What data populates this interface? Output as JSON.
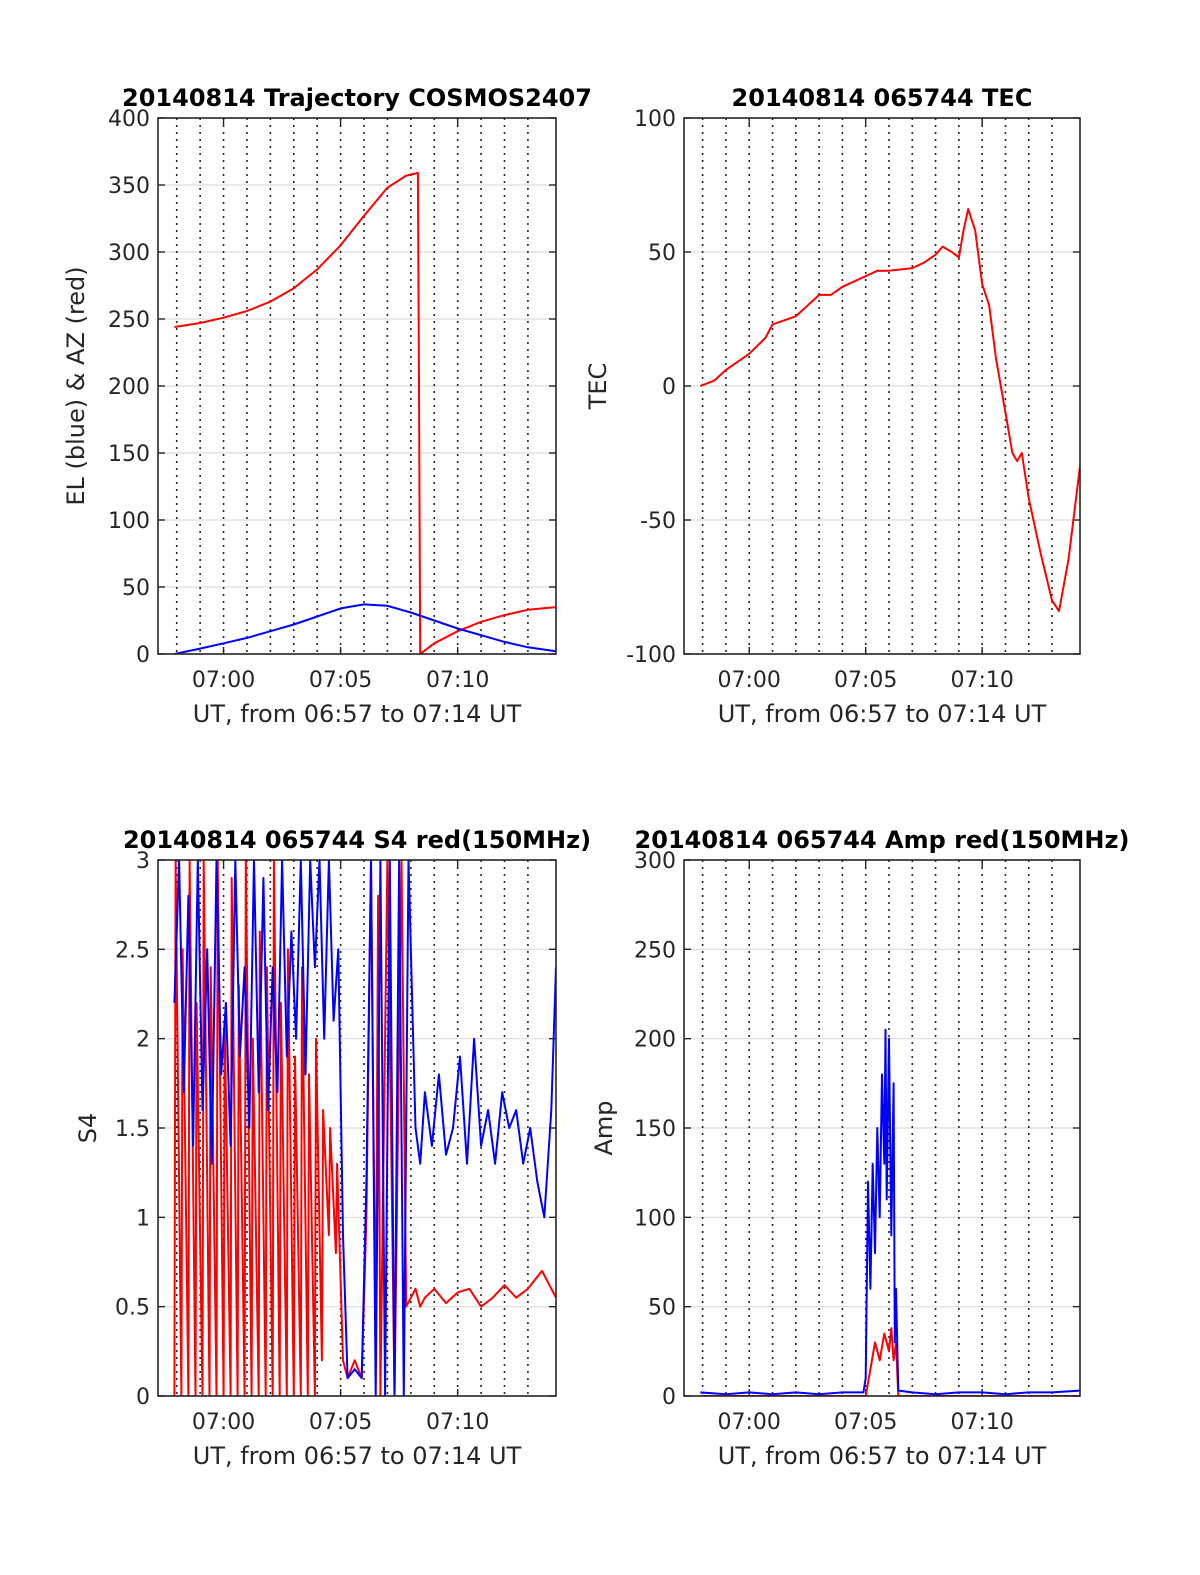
{
  "chart_data": [
    {
      "type": "line",
      "title": "20140814 Trajectory COSMOS2407",
      "xlabel": "UT, from 06:57 to 07:14 UT",
      "ylabel": "EL (blue) & AZ (red)",
      "x_unit": "minutes after 07:00 UT",
      "xlim": [
        -2.8,
        14.2
      ],
      "ylim": [
        0,
        400
      ],
      "yticks": [
        "0",
        "50",
        "100",
        "150",
        "200",
        "250",
        "300",
        "350",
        "400"
      ],
      "xticks": [
        {
          "x": 0,
          "label": "07:00"
        },
        {
          "x": 5,
          "label": "07:05"
        },
        {
          "x": 10,
          "label": "07:10"
        }
      ],
      "grid": true,
      "series": [
        {
          "color": "#ff0000",
          "x": [
            -2.1,
            -1,
            0,
            1,
            2,
            3,
            4,
            5,
            6,
            7,
            7.8,
            8.3,
            8.35,
            8.4,
            9,
            10,
            11,
            12,
            13,
            14.2
          ],
          "y": [
            244,
            247,
            251,
            256,
            263,
            273,
            287,
            305,
            327,
            348,
            357,
            359,
            200,
            0,
            8,
            17,
            24,
            29,
            33,
            35
          ]
        },
        {
          "color": "#0000ff",
          "x": [
            -2.1,
            -1,
            0,
            1,
            2,
            3,
            4,
            5,
            6,
            7,
            8,
            9,
            10,
            11,
            12,
            13,
            14.2
          ],
          "y": [
            0,
            4,
            8,
            12,
            17,
            22,
            28,
            34,
            37,
            36,
            31,
            25,
            19,
            14,
            9,
            5,
            2
          ]
        }
      ]
    },
    {
      "type": "line",
      "title": "20140814 065744 TEC",
      "xlabel": "UT, from 06:57 to 07:14 UT",
      "ylabel": "TEC",
      "x_unit": "minutes after 07:00 UT",
      "xlim": [
        -2.8,
        14.2
      ],
      "ylim": [
        -100,
        100
      ],
      "yticks": [
        "-100",
        "-50",
        "0",
        "50",
        "100"
      ],
      "xticks": [
        {
          "x": 0,
          "label": "07:00"
        },
        {
          "x": 5,
          "label": "07:05"
        },
        {
          "x": 10,
          "label": "07:10"
        }
      ],
      "grid": true,
      "series": [
        {
          "color": "#ff0000",
          "x": [
            -2.1,
            -1.5,
            -1,
            0,
            0.7,
            1,
            2,
            2.5,
            3,
            3.5,
            4,
            5,
            5.5,
            6,
            7,
            7.5,
            8,
            8.3,
            8.7,
            9,
            9.2,
            9.4,
            9.7,
            10,
            10.3,
            10.6,
            11,
            11.3,
            11.5,
            11.7,
            12,
            12.5,
            13,
            13.3,
            13.7,
            14.2
          ],
          "y": [
            0,
            2,
            6,
            12,
            18,
            23,
            26,
            30,
            34,
            34,
            37,
            41,
            43,
            43,
            44,
            46,
            49,
            52,
            50,
            48,
            58,
            66,
            58,
            38,
            30,
            10,
            -10,
            -25,
            -28,
            -25,
            -42,
            -62,
            -80,
            -84,
            -65,
            -30
          ]
        }
      ]
    },
    {
      "type": "line",
      "title": "20140814 065744 S4 red(150MHz)",
      "xlabel": "UT, from 06:57 to 07:14 UT",
      "ylabel": "S4",
      "x_unit": "minutes after 07:00 UT",
      "xlim": [
        -2.8,
        14.2
      ],
      "ylim": [
        0,
        3
      ],
      "yticks": [
        "0",
        "0.5",
        "1",
        "1.5",
        "2",
        "2.5",
        "3"
      ],
      "xticks": [
        {
          "x": 0,
          "label": "07:00"
        },
        {
          "x": 5,
          "label": "07:05"
        },
        {
          "x": 10,
          "label": "07:10"
        }
      ],
      "grid": true,
      "series": [
        {
          "color": "#ff0000",
          "x": [
            -2.1,
            -2.05,
            -1.8,
            -1.75,
            -1.5,
            -1.45,
            -1.2,
            -1.15,
            -0.9,
            -0.85,
            -0.6,
            -0.55,
            -0.3,
            -0.25,
            0,
            0.05,
            0.3,
            0.35,
            0.6,
            0.65,
            0.9,
            0.95,
            1.2,
            1.25,
            1.5,
            1.55,
            1.8,
            1.85,
            2.1,
            2.15,
            2.4,
            2.45,
            2.7,
            2.75,
            3.0,
            3.05,
            3.3,
            3.35,
            3.6,
            3.65,
            3.9,
            3.95,
            4.2,
            4.25,
            4.5,
            4.55,
            4.8,
            4.85,
            5.1,
            5.3,
            5.6,
            5.9,
            6.1,
            6.3,
            6.5,
            6.6,
            6.7,
            7.0,
            7.3,
            7.6,
            7.8,
            8.2,
            8.4,
            8.6,
            9,
            9.5,
            10,
            10.5,
            11,
            11.5,
            12,
            12.5,
            13,
            13.3,
            13.6,
            14.2
          ],
          "y": [
            0,
            3,
            0,
            2.5,
            0,
            3,
            0,
            2.2,
            0,
            3,
            0,
            2.4,
            0,
            3,
            0,
            2.1,
            0,
            2.9,
            0,
            2.3,
            0,
            3,
            0,
            2.0,
            0,
            2.6,
            0,
            2.4,
            0,
            3,
            0,
            2.2,
            0,
            2.5,
            0,
            1.9,
            0,
            2.4,
            0,
            1.8,
            0,
            2.0,
            0.2,
            1.6,
            0.9,
            1.5,
            0.8,
            1.3,
            0.2,
            0.1,
            0.2,
            0.1,
            1.0,
            3,
            0.2,
            2.8,
            0,
            3,
            0,
            3,
            0.5,
            0.6,
            0.5,
            0.55,
            0.6,
            0.52,
            0.58,
            0.6,
            0.5,
            0.55,
            0.62,
            0.55,
            0.6,
            0.65,
            0.7,
            0.55
          ]
        },
        {
          "color": "#0000ff",
          "x": [
            -2.1,
            -1.9,
            -1.7,
            -1.5,
            -1.3,
            -1.1,
            -0.9,
            -0.7,
            -0.5,
            -0.3,
            -0.1,
            0.1,
            0.3,
            0.5,
            0.7,
            0.9,
            1.1,
            1.3,
            1.5,
            1.7,
            1.9,
            2.1,
            2.3,
            2.5,
            2.7,
            2.9,
            3.1,
            3.3,
            3.5,
            3.7,
            3.9,
            4.1,
            4.3,
            4.5,
            4.7,
            4.9,
            5.1,
            5.3,
            5.6,
            5.9,
            6.1,
            6.3,
            6.5,
            6.7,
            6.9,
            7.1,
            7.3,
            7.5,
            7.7,
            7.9,
            8.2,
            8.4,
            8.6,
            8.9,
            9.2,
            9.5,
            9.8,
            10.1,
            10.4,
            10.7,
            11.0,
            11.3,
            11.6,
            11.9,
            12.2,
            12.5,
            12.8,
            13.1,
            13.4,
            13.7,
            14.0,
            14.2
          ],
          "y": [
            2.2,
            3,
            1.7,
            2.8,
            1.4,
            3,
            1.6,
            2.5,
            1.3,
            3,
            1.8,
            2.2,
            1.4,
            3,
            1.9,
            2.4,
            1.5,
            3,
            1.7,
            2.9,
            1.6,
            2.4,
            1.7,
            3,
            1.9,
            2.6,
            2.0,
            3,
            1.8,
            3,
            2.4,
            3,
            2.0,
            3,
            2.1,
            2.5,
            0.9,
            0.1,
            0.15,
            0.1,
            1.2,
            3,
            0,
            3,
            0,
            3,
            0,
            3,
            0,
            3,
            1.5,
            1.3,
            1.7,
            1.4,
            1.8,
            1.35,
            1.5,
            1.9,
            1.3,
            2.0,
            1.4,
            1.6,
            1.3,
            1.7,
            1.5,
            1.6,
            1.3,
            1.5,
            1.2,
            1.0,
            1.6,
            2.4
          ]
        }
      ]
    },
    {
      "type": "line",
      "title": "20140814 065744 Amp red(150MHz)",
      "xlabel": "UT, from 06:57 to 07:14 UT",
      "ylabel": "Amp",
      "x_unit": "minutes after 07:00 UT",
      "xlim": [
        -2.8,
        14.2
      ],
      "ylim": [
        0,
        300
      ],
      "yticks": [
        "0",
        "50",
        "100",
        "150",
        "200",
        "250",
        "300"
      ],
      "xticks": [
        {
          "x": 0,
          "label": "07:00"
        },
        {
          "x": 5,
          "label": "07:05"
        },
        {
          "x": 10,
          "label": "07:10"
        }
      ],
      "grid": true,
      "series": [
        {
          "color": "#ff0000",
          "x": [
            -2.1,
            0,
            2,
            4,
            5.0,
            5.2,
            5.4,
            5.6,
            5.8,
            6.0,
            6.1,
            6.2,
            6.3,
            6.4,
            8,
            10,
            12,
            14.2
          ],
          "y": [
            0,
            0,
            0,
            0,
            0,
            15,
            30,
            20,
            35,
            25,
            38,
            20,
            30,
            0,
            0,
            0,
            0,
            0
          ]
        },
        {
          "color": "#0000ff",
          "x": [
            -2.1,
            -1,
            0,
            1,
            2,
            3,
            4,
            4.9,
            5.0,
            5.1,
            5.2,
            5.3,
            5.4,
            5.5,
            5.6,
            5.7,
            5.8,
            5.85,
            5.9,
            6.0,
            6.1,
            6.2,
            6.25,
            6.3,
            6.4,
            7,
            8,
            9,
            10,
            11,
            12,
            13,
            14.2
          ],
          "y": [
            2,
            1,
            2,
            1,
            2,
            1,
            2,
            2,
            10,
            120,
            60,
            130,
            80,
            150,
            100,
            180,
            130,
            205,
            110,
            200,
            90,
            175,
            30,
            60,
            3,
            2,
            1,
            2,
            2,
            1,
            2,
            2,
            3
          ]
        }
      ]
    }
  ]
}
